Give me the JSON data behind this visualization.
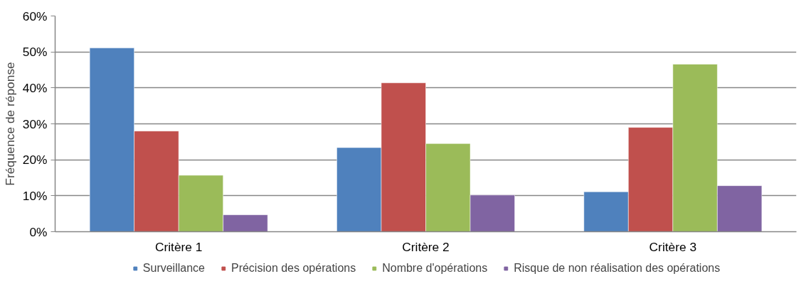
{
  "chart_data": {
    "type": "bar",
    "ylabel": "Fréquence de réponse",
    "categories": [
      "Critère 1",
      "Critère 2",
      "Critère 3"
    ],
    "series": [
      {
        "name": "Surveillance",
        "color": "#4f81bd",
        "values": [
          51.1,
          23.4,
          11.1
        ]
      },
      {
        "name": "Précision des opérations",
        "color": "#c0504d",
        "values": [
          28.0,
          41.4,
          29.0
        ]
      },
      {
        "name": "Nombre d'opérations",
        "color": "#9bbb59",
        "values": [
          15.7,
          24.5,
          46.6
        ]
      },
      {
        "name": "Risque de non réalisation des opérations",
        "color": "#8064a2",
        "values": [
          4.7,
          10.2,
          12.8
        ]
      }
    ],
    "ylim": [
      0,
      60
    ],
    "yticks": [
      {
        "value": 0,
        "label": "0%"
      },
      {
        "value": 10,
        "label": "10%"
      },
      {
        "value": 20,
        "label": "20%"
      },
      {
        "value": 30,
        "label": "30%"
      },
      {
        "value": 40,
        "label": "40%"
      },
      {
        "value": 50,
        "label": "50%"
      },
      {
        "value": 60,
        "label": "60%"
      }
    ],
    "grid": "y",
    "legend": "bottom"
  }
}
